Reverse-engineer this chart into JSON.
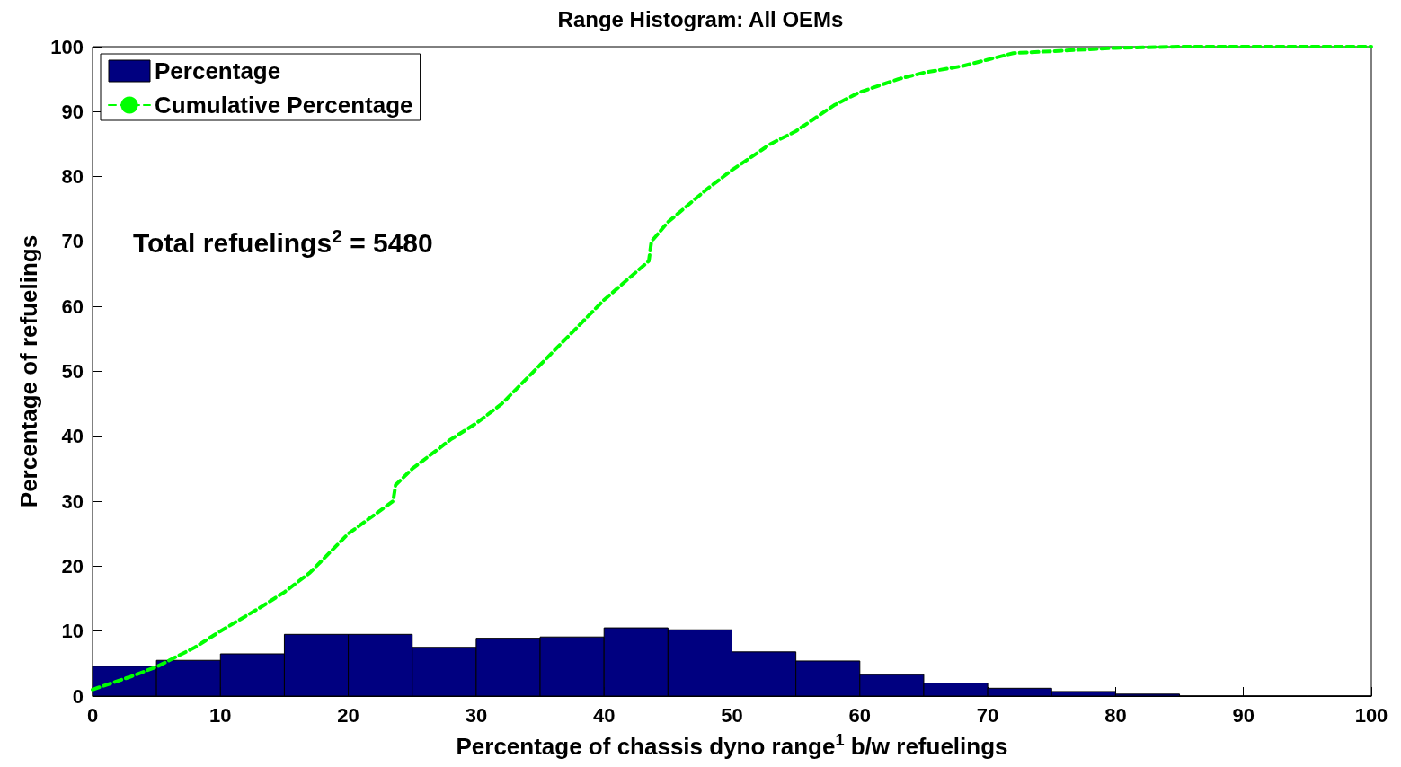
{
  "chart_data": {
    "type": "histogram",
    "title": "Range Histogram: All OEMs",
    "xlabel": "Percentage of chassis dyno range$^{1}$ b/w refuelings",
    "ylabel": "Percentage of refuelings",
    "annotations": [
      "Total refuelings$^{2}$ = 5480"
    ],
    "xlim": [
      0,
      100
    ],
    "xticks": [
      0,
      10,
      20,
      30,
      40,
      50,
      60,
      70,
      80,
      90,
      100
    ],
    "ylim": [
      0,
      100
    ],
    "yticks": [
      0,
      10,
      20,
      30,
      40,
      50,
      60,
      70,
      80,
      90,
      100
    ],
    "grid": false,
    "legend": "top left",
    "series": [
      {
        "name": "Percentage",
        "color": "#000080",
        "bins": [
          0,
          5,
          10,
          15,
          20,
          25,
          30,
          35,
          40,
          45,
          50,
          55,
          60,
          65,
          70,
          75,
          80,
          85,
          90,
          95,
          100
        ],
        "values": [
          4.6,
          5.5,
          6.5,
          9.5,
          9.5,
          7.5,
          8.9,
          9.1,
          10.5,
          10.2,
          6.8,
          5.4,
          3.3,
          2.0,
          1.2,
          0.7,
          0.3,
          0,
          0,
          0
        ]
      },
      {
        "name": "Cumulative Percentage",
        "type": "line",
        "color": "#00ff00",
        "line_style": "dashed",
        "marker": "none",
        "x": [
          0,
          3,
          5,
          8,
          10,
          13,
          15,
          17,
          20,
          23.5,
          23.7,
          25,
          28,
          30,
          32,
          35,
          38,
          40,
          43.5,
          43.7,
          45,
          48,
          50,
          53,
          55,
          58,
          60,
          63,
          65,
          68,
          70,
          72,
          75,
          80,
          85,
          100
        ],
        "values": [
          1,
          3,
          4.5,
          7.5,
          10,
          13.5,
          16,
          19,
          25,
          30,
          32.5,
          35,
          39.5,
          42,
          45,
          51,
          57,
          61,
          67,
          70,
          73,
          78,
          81,
          85,
          87,
          91,
          93,
          95,
          96,
          97,
          98,
          99,
          99.3,
          99.8,
          100,
          100
        ]
      }
    ]
  }
}
